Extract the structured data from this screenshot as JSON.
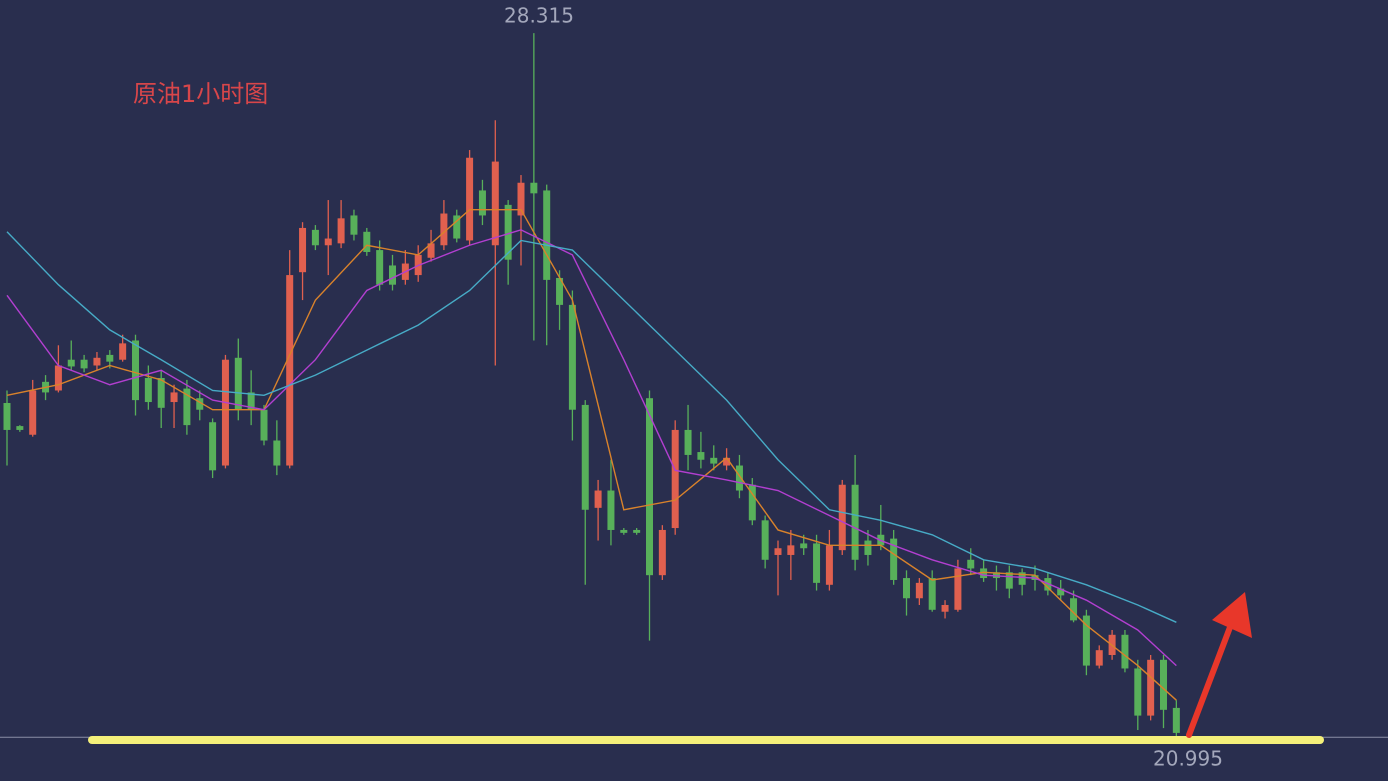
{
  "chart_data": {
    "type": "candlestick",
    "title": "原油1小时图",
    "high_label": 28.315,
    "low_label": 20.995,
    "ylim": [
      20.54,
      28.66
    ],
    "up_color": "#e0604f",
    "down_color": "#58b05a",
    "open": [
      24.47,
      24.23,
      24.14,
      24.69,
      24.6,
      24.92,
      24.92,
      24.86,
      24.97,
      24.92,
      25.12,
      24.73,
      24.73,
      24.48,
      24.62,
      24.52,
      24.27,
      23.82,
      24.94,
      24.58,
      24.4,
      24.08,
      23.82,
      25.83,
      26.27,
      26.11,
      26.13,
      26.42,
      26.25,
      26.06,
      25.9,
      25.75,
      25.8,
      25.98,
      26.11,
      26.42,
      26.16,
      26.68,
      26.11,
      26.53,
      26.42,
      26.76,
      26.68,
      25.77,
      25.49,
      24.45,
      23.38,
      23.56,
      23.15,
      23.15,
      24.52,
      22.68,
      23.17,
      24.19,
      23.96,
      23.9,
      23.82,
      23.82,
      23.62,
      23.25,
      22.89,
      22.89,
      23.01,
      23.01,
      22.58,
      22.94,
      23.62,
      23.04,
      23.1,
      23.06,
      22.65,
      22.44,
      22.65,
      22.3,
      22.32,
      22.84,
      22.75,
      22.71,
      22.71,
      22.71,
      22.68,
      22.65,
      22.54,
      22.44,
      22.26,
      21.74,
      21.85,
      22.06,
      21.71,
      21.22,
      21.8,
      21.3
    ],
    "high": [
      24.6,
      24.24,
      24.71,
      24.76,
      25.07,
      25.12,
      24.97,
      25.0,
      25.02,
      25.18,
      25.18,
      24.86,
      24.81,
      24.66,
      24.71,
      24.6,
      24.31,
      24.97,
      25.14,
      24.81,
      24.45,
      24.29,
      26.06,
      26.35,
      26.32,
      26.58,
      26.58,
      26.48,
      26.29,
      26.16,
      26.01,
      26.06,
      26.11,
      26.27,
      26.58,
      26.48,
      27.1,
      26.79,
      27.41,
      26.58,
      26.84,
      28.315,
      26.74,
      25.85,
      25.64,
      24.5,
      23.67,
      23.88,
      23.17,
      23.17,
      24.6,
      23.2,
      24.29,
      24.45,
      24.17,
      24.03,
      24.0,
      23.93,
      23.69,
      23.3,
      23.04,
      23.15,
      23.1,
      23.1,
      23.15,
      23.67,
      23.93,
      23.15,
      23.41,
      23.15,
      22.73,
      22.65,
      22.73,
      22.42,
      22.84,
      22.96,
      22.84,
      22.78,
      22.78,
      22.75,
      22.78,
      22.71,
      22.63,
      22.52,
      22.32,
      21.95,
      22.11,
      22.11,
      21.8,
      21.85,
      21.85,
      21.38
    ],
    "low": [
      23.82,
      24.17,
      24.12,
      24.5,
      24.58,
      24.81,
      24.79,
      24.81,
      24.83,
      24.9,
      24.34,
      24.4,
      24.21,
      24.21,
      24.14,
      24.29,
      23.69,
      23.79,
      24.29,
      24.24,
      24.03,
      23.72,
      23.79,
      25.54,
      26.06,
      25.8,
      26.08,
      26.16,
      26.0,
      25.64,
      25.64,
      25.7,
      25.73,
      25.94,
      26.06,
      26.14,
      26.11,
      26.32,
      24.86,
      25.7,
      25.9,
      25.12,
      25.07,
      25.23,
      24.08,
      22.58,
      23.04,
      22.99,
      23.1,
      23.1,
      22.0,
      22.63,
      23.1,
      23.77,
      23.79,
      23.77,
      23.77,
      23.48,
      23.2,
      22.75,
      22.47,
      22.63,
      22.89,
      22.52,
      22.52,
      22.89,
      22.73,
      22.78,
      22.94,
      22.58,
      22.26,
      22.37,
      22.3,
      22.23,
      22.3,
      22.68,
      22.61,
      22.52,
      22.44,
      22.47,
      22.52,
      22.47,
      22.42,
      22.19,
      21.64,
      21.71,
      21.8,
      21.67,
      21.07,
      21.17,
      21.09,
      20.995
    ],
    "close": [
      24.19,
      24.19,
      24.6,
      24.58,
      24.86,
      24.85,
      24.83,
      24.94,
      24.9,
      25.09,
      24.5,
      24.48,
      24.42,
      24.58,
      24.24,
      24.4,
      23.77,
      24.92,
      24.4,
      24.4,
      24.08,
      23.82,
      25.8,
      26.29,
      26.11,
      26.18,
      26.39,
      26.22,
      26.04,
      25.7,
      25.7,
      25.92,
      26.01,
      26.13,
      26.44,
      26.18,
      27.02,
      26.42,
      26.98,
      25.96,
      26.76,
      26.65,
      25.75,
      25.49,
      24.4,
      23.36,
      23.56,
      23.15,
      23.12,
      23.12,
      22.68,
      23.15,
      24.19,
      23.93,
      23.88,
      23.84,
      23.9,
      23.56,
      23.25,
      22.84,
      22.96,
      22.99,
      22.96,
      22.6,
      22.99,
      23.62,
      22.84,
      22.89,
      22.99,
      22.63,
      22.44,
      22.6,
      22.32,
      22.37,
      22.75,
      22.75,
      22.65,
      22.65,
      22.54,
      22.58,
      22.63,
      22.52,
      22.47,
      22.21,
      21.74,
      21.9,
      22.06,
      21.71,
      21.22,
      21.8,
      21.28,
      21.04
    ],
    "series": [
      {
        "color": "#d9822b",
        "x": [
          0,
          4,
          8,
          12,
          16,
          20,
          24,
          28,
          32,
          36,
          40,
          44,
          48,
          52,
          56,
          60,
          64,
          68,
          72,
          76,
          80,
          84,
          88,
          91
        ],
        "values": [
          24.55,
          24.66,
          24.86,
          24.71,
          24.4,
          24.4,
          25.54,
          26.11,
          26.01,
          26.48,
          26.48,
          25.54,
          23.36,
          23.46,
          23.9,
          23.15,
          22.99,
          22.99,
          22.63,
          22.71,
          22.68,
          22.16,
          21.74,
          21.38
        ]
      },
      {
        "color": "#b23fd0",
        "x": [
          0,
          4,
          8,
          12,
          16,
          20,
          24,
          28,
          32,
          36,
          40,
          44,
          48,
          52,
          56,
          60,
          64,
          68,
          72,
          76,
          80,
          84,
          88,
          91
        ],
        "values": [
          25.59,
          24.86,
          24.66,
          24.81,
          24.5,
          24.4,
          24.92,
          25.64,
          25.9,
          26.11,
          26.27,
          26.01,
          24.92,
          23.77,
          23.67,
          23.56,
          23.3,
          23.04,
          22.84,
          22.68,
          22.65,
          22.42,
          22.11,
          21.74
        ]
      },
      {
        "color": "#47abc6",
        "x": [
          0,
          4,
          8,
          12,
          16,
          20,
          24,
          28,
          32,
          36,
          40,
          44,
          48,
          52,
          56,
          60,
          64,
          68,
          72,
          76,
          80,
          84,
          88,
          91
        ],
        "values": [
          26.25,
          25.7,
          25.23,
          24.92,
          24.6,
          24.55,
          24.76,
          25.02,
          25.28,
          25.64,
          26.16,
          26.06,
          25.54,
          25.02,
          24.5,
          23.88,
          23.36,
          23.25,
          23.1,
          22.84,
          22.75,
          22.58,
          22.37,
          22.19
        ]
      }
    ]
  }
}
